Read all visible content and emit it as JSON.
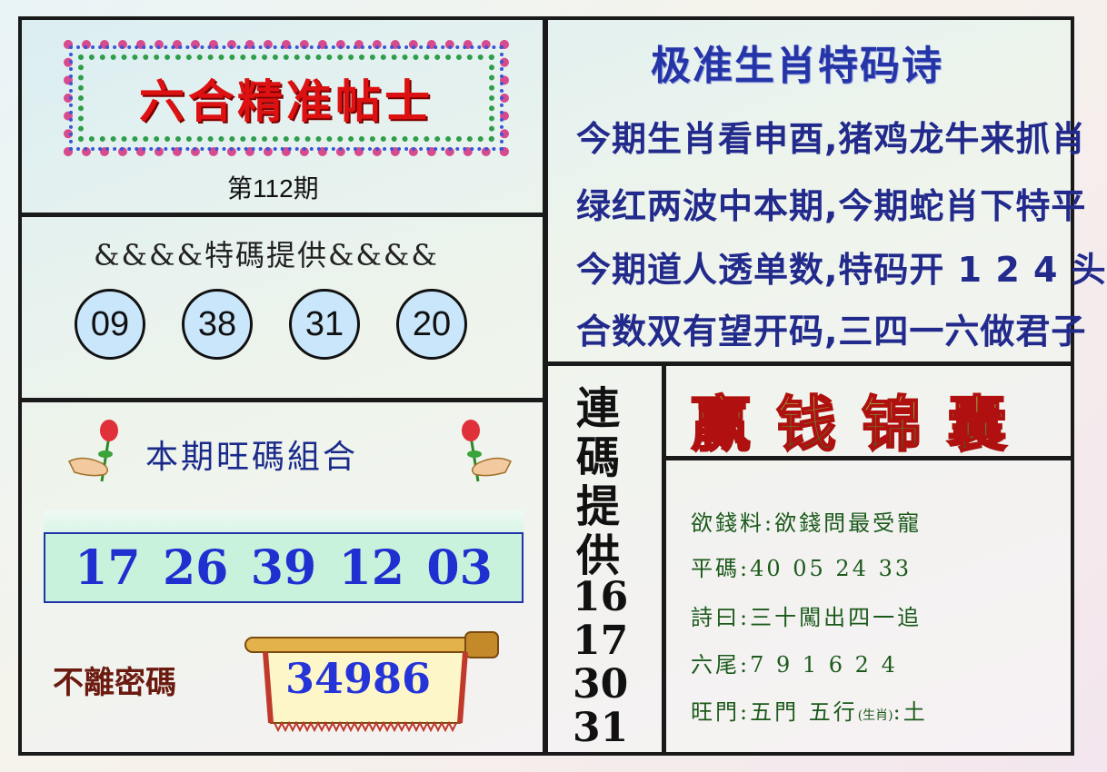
{
  "header": {
    "title": "六合精准帖士",
    "issue": "第112期"
  },
  "special_code": {
    "title": "&&&&特碼提供&&&&",
    "numbers": [
      "09",
      "38",
      "31",
      "20"
    ]
  },
  "combo": {
    "title": "本期旺碼組合",
    "numbers": [
      "17",
      "26",
      "39",
      "12",
      "03"
    ]
  },
  "secret": {
    "label": "不離密碼",
    "value": "34986"
  },
  "poem": {
    "title": "极准生肖特码诗",
    "lines": [
      "今期生肖看申酉,猪鸡龙牛来抓肖",
      "绿红两波中本期,今期蛇肖下特平",
      "今期道人透单数,特码开 1 2 4 头",
      "合数双有望开码,三四一六做君子"
    ]
  },
  "lianma": {
    "title_chars": [
      "連",
      "碼",
      "提",
      "供"
    ],
    "numbers": [
      "16",
      "17",
      "30",
      "31"
    ]
  },
  "jinnang": {
    "title": "赢钱锦囊",
    "line1": "欲錢料:欲錢問最受寵",
    "line2": "平碼:40  05  24  33",
    "line3": "詩曰:三十闖出四一追",
    "line4": "六尾:7  9  1  6  2  4",
    "line5_prefix": "旺門:五門  五行",
    "line5_small": "(生肖)",
    "line5_suffix": ":土"
  },
  "colors": {
    "title_red": "#d11111",
    "poem_blue": "#222a8c",
    "combo_blue": "#1f2fd0",
    "jinnang_green": "#1b5a1b"
  }
}
